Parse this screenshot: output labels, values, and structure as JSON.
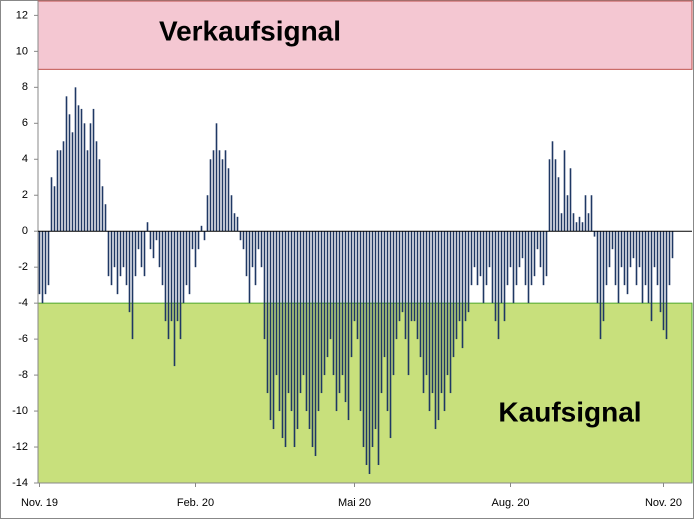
{
  "chart_data": {
    "type": "bar",
    "categories": [
      "Nov. 19",
      null,
      null,
      null,
      null,
      null,
      null,
      null,
      null,
      null,
      null,
      null,
      null,
      null,
      null,
      null,
      null,
      null,
      null,
      null,
      null,
      null,
      null,
      null,
      null,
      null,
      null,
      null,
      null,
      null,
      null,
      null,
      null,
      null,
      null,
      null,
      null,
      null,
      null,
      null,
      null,
      null,
      null,
      null,
      null,
      null,
      null,
      null,
      null,
      null,
      null,
      null,
      "Feb. 20",
      null,
      null,
      null,
      null,
      null,
      null,
      null,
      null,
      null,
      null,
      null,
      null,
      null,
      null,
      null,
      null,
      null,
      null,
      null,
      null,
      null,
      null,
      null,
      null,
      null,
      null,
      null,
      null,
      null,
      null,
      null,
      null,
      null,
      null,
      null,
      null,
      null,
      null,
      null,
      null,
      null,
      null,
      null,
      null,
      null,
      null,
      null,
      null,
      null,
      null,
      null,
      null,
      "Mai 20",
      null,
      null,
      null,
      null,
      null,
      null,
      null,
      null,
      null,
      null,
      null,
      null,
      null,
      null,
      null,
      null,
      null,
      null,
      null,
      null,
      null,
      null,
      null,
      null,
      null,
      null,
      null,
      null,
      null,
      null,
      null,
      null,
      null,
      null,
      null,
      null,
      null,
      null,
      null,
      null,
      null,
      null,
      null,
      null,
      null,
      null,
      null,
      null,
      null,
      null,
      null,
      "Aug. 20",
      null,
      null,
      null,
      null,
      null,
      null,
      null,
      null,
      null,
      null,
      null,
      null,
      null,
      null,
      null,
      null,
      null,
      null,
      null,
      null,
      null,
      null,
      null,
      null,
      null,
      null,
      null,
      null,
      null,
      null,
      null,
      null,
      null,
      null,
      null,
      null,
      null,
      null,
      null,
      null,
      null,
      null,
      null,
      null,
      null,
      null,
      null,
      null,
      null,
      null,
      "Nov. 20",
      null,
      null,
      null
    ],
    "values": [
      -3.5,
      -4,
      -3.5,
      -3,
      3,
      2.5,
      4.5,
      4.5,
      5,
      7.5,
      6.5,
      5.5,
      8,
      7,
      6.8,
      6,
      4.5,
      6,
      6.8,
      5,
      4,
      2.5,
      1.5,
      -2.5,
      -3,
      -2,
      -3.5,
      -2.5,
      -2,
      -3,
      -4.5,
      -6,
      -2.5,
      -1,
      -2,
      -2.5,
      0.5,
      -1,
      -1.5,
      -0.5,
      -2,
      -3,
      -5,
      -6,
      -5,
      -7.5,
      -5,
      -6,
      -4,
      -3,
      -3.5,
      -1,
      -2,
      -1,
      0.3,
      -0.5,
      2,
      4,
      4.5,
      6,
      4.5,
      4,
      4.5,
      3.5,
      2,
      1,
      0.8,
      -0.5,
      -1,
      -2.5,
      -4,
      -2,
      -3,
      -1,
      -2,
      -6,
      -9,
      -10.5,
      -11,
      -8,
      -10,
      -11.5,
      -12,
      -9,
      -10,
      -12,
      -11,
      -9,
      -8,
      -10,
      -11,
      -12,
      -12.5,
      -10,
      -9,
      -8,
      -7,
      -6,
      -8,
      -10,
      -9,
      -8,
      -9.5,
      -10.5,
      -7,
      -5,
      -6,
      -10,
      -12,
      -13,
      -13.5,
      -12,
      -11,
      -13,
      -9,
      -7,
      -10,
      -11.5,
      -8,
      -6,
      -5,
      -4.5,
      -6,
      -8,
      -5,
      -5,
      -6,
      -7,
      -9,
      -8,
      -10,
      -9,
      -11,
      -10.5,
      -9,
      -10,
      -8,
      -9,
      -7,
      -6,
      -5,
      -6.5,
      -5,
      -4.5,
      -3,
      -2,
      -3,
      -2.5,
      -4,
      -3,
      -2,
      -4,
      -5,
      -6,
      -4,
      -5,
      -3,
      -2,
      -4,
      -3,
      -2,
      -1.5,
      -3,
      -4,
      -3,
      -2.5,
      -1,
      -2,
      -3,
      -2.5,
      4,
      5,
      4,
      3,
      1,
      4.5,
      2,
      3.5,
      1,
      0.5,
      0.8,
      0.5,
      2,
      1,
      2,
      -0.3,
      -4,
      -6,
      -5,
      -3,
      -2,
      -1,
      -3,
      -4,
      -2,
      -3,
      -3.5,
      -2,
      -1.5,
      -3,
      -2,
      -4,
      -3,
      -4,
      -5,
      -2,
      -3,
      -4.5,
      -5.5,
      -6,
      -3,
      -1.5
    ],
    "color": "#1f3864",
    "ylim": [
      -14,
      12.8
    ],
    "yticks": [
      -14,
      -12,
      -10,
      -8,
      -6,
      -4,
      -2,
      0,
      2,
      4,
      6,
      8,
      10,
      12
    ],
    "zones": [
      {
        "label": "Verkaufsignal",
        "from": 9,
        "to": 12.8,
        "color": "#f4c7d2",
        "border": "#c0504d"
      },
      {
        "label": "Kaufsignal",
        "from": -14,
        "to": -4,
        "color": "#c8e07c",
        "border": "#4ea72e"
      }
    ]
  }
}
